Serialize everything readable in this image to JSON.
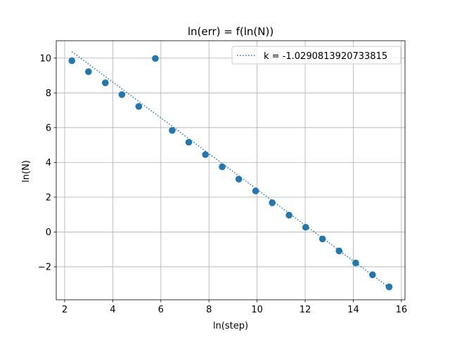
{
  "chart_data": {
    "type": "scatter",
    "title": "ln(err) = f(ln(N))",
    "xlabel": "ln(step)",
    "ylabel": "ln(N)",
    "xlim": [
      1.65,
      16.15
    ],
    "ylim": [
      -3.9,
      11.0
    ],
    "xticks": [
      "2",
      "4",
      "6",
      "8",
      "10",
      "12",
      "14",
      "16"
    ],
    "xtick_values": [
      2,
      4,
      6,
      8,
      10,
      12,
      14,
      16
    ],
    "yticks": [
      "−2",
      "0",
      "2",
      "4",
      "6",
      "8",
      "10"
    ],
    "ytick_values": [
      -2,
      0,
      2,
      4,
      6,
      8,
      10
    ],
    "grid": true,
    "legend_position": "top-right",
    "series": [
      {
        "kind": "scatter",
        "color": "#1f77b4",
        "x": [
          2.3,
          2.99,
          3.69,
          4.38,
          5.08,
          5.77,
          6.47,
          7.16,
          7.85,
          8.55,
          9.24,
          9.94,
          10.63,
          11.33,
          12.02,
          12.72,
          13.41,
          14.1,
          14.8,
          15.49
        ],
        "y": [
          9.85,
          9.22,
          8.58,
          7.9,
          7.22,
          9.98,
          5.84,
          5.16,
          4.45,
          3.75,
          3.04,
          2.36,
          1.68,
          0.97,
          0.27,
          -0.4,
          -1.09,
          -1.78,
          -2.46,
          -3.16
        ]
      },
      {
        "kind": "fit-line",
        "name": "k = -1.0290813920733815",
        "color": "#1f77b4",
        "x": [
          2.3,
          15.49
        ],
        "y": [
          10.37,
          -3.2
        ]
      }
    ]
  }
}
